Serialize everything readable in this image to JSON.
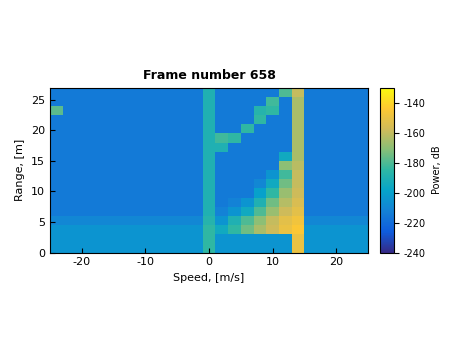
{
  "chart_data": {
    "type": "heatmap",
    "title": "Frame number 658",
    "x_label": "Speed, [m/s]",
    "y_label": "Range, [m]",
    "xlim": [
      -25,
      25
    ],
    "xticks": [
      -20,
      -10,
      0,
      10,
      20
    ],
    "ylim": [
      0,
      27
    ],
    "yticks": [
      0,
      5,
      10,
      15,
      20,
      25
    ],
    "x_edges": [
      -25,
      -23,
      -21,
      -19,
      -17,
      -15,
      -13,
      -11,
      -9,
      -7,
      -5,
      -3,
      -1,
      1,
      3,
      5,
      7,
      9,
      11,
      13,
      15,
      17,
      19,
      21,
      23,
      25
    ],
    "y_edges": [
      0,
      1.5,
      3,
      4.5,
      6,
      7.5,
      9,
      10.5,
      12,
      13.5,
      15,
      16.5,
      18,
      19.5,
      21,
      22.5,
      24,
      25.5,
      27
    ],
    "colorbar": {
      "label": "Power, dB",
      "lim": [
        -240,
        -130
      ],
      "ticks": [
        -240,
        -220,
        -200,
        -180,
        -160,
        -140
      ]
    },
    "cells": [
      [
        -205,
        -205,
        -205,
        -205,
        -205,
        -205,
        -205,
        -205,
        -205,
        -205,
        -205,
        -205,
        -185,
        -205,
        -205,
        -205,
        -205,
        -205,
        -205,
        -150,
        -205,
        -205,
        -205,
        -205,
        -205
      ],
      [
        -205,
        -205,
        -205,
        -205,
        -205,
        -205,
        -205,
        -205,
        -205,
        -205,
        -205,
        -205,
        -185,
        -205,
        -205,
        -205,
        -205,
        -205,
        -205,
        -150,
        -205,
        -205,
        -205,
        -205,
        -205
      ],
      [
        -205,
        -205,
        -205,
        -205,
        -205,
        -205,
        -205,
        -205,
        -205,
        -205,
        -205,
        -205,
        -185,
        -195,
        -185,
        -175,
        -165,
        -158,
        -150,
        -145,
        -205,
        -205,
        -205,
        -205,
        -205
      ],
      [
        -210,
        -210,
        -210,
        -210,
        -210,
        -210,
        -210,
        -210,
        -210,
        -210,
        -210,
        -210,
        -188,
        -205,
        -190,
        -180,
        -170,
        -160,
        -152,
        -148,
        -210,
        -210,
        -210,
        -210,
        -210
      ],
      [
        -215,
        -215,
        -215,
        -215,
        -215,
        -215,
        -215,
        -215,
        -215,
        -215,
        -215,
        -215,
        -190,
        -212,
        -205,
        -195,
        -180,
        -168,
        -158,
        -152,
        -215,
        -215,
        -215,
        -215,
        -215
      ],
      [
        -215,
        -215,
        -215,
        -215,
        -215,
        -215,
        -215,
        -215,
        -215,
        -215,
        -215,
        -215,
        -190,
        -215,
        -212,
        -205,
        -190,
        -175,
        -163,
        -155,
        -215,
        -215,
        -215,
        -215,
        -215
      ],
      [
        -215,
        -215,
        -215,
        -215,
        -215,
        -215,
        -215,
        -215,
        -215,
        -215,
        -215,
        -215,
        -190,
        -215,
        -215,
        -215,
        -200,
        -185,
        -168,
        -158,
        -215,
        -215,
        -215,
        -215,
        -215
      ],
      [
        -215,
        -215,
        -215,
        -215,
        -215,
        -215,
        -215,
        -215,
        -215,
        -215,
        -215,
        -215,
        -190,
        -215,
        -215,
        -215,
        -210,
        -195,
        -175,
        -160,
        -215,
        -215,
        -215,
        -215,
        -215
      ],
      [
        -215,
        -215,
        -215,
        -215,
        -215,
        -215,
        -215,
        -215,
        -215,
        -215,
        -215,
        -215,
        -190,
        -215,
        -215,
        -215,
        -215,
        -205,
        -182,
        -160,
        -215,
        -215,
        -215,
        -215,
        -215
      ],
      [
        -215,
        -215,
        -215,
        -215,
        -215,
        -215,
        -215,
        -215,
        -215,
        -215,
        -215,
        -215,
        -190,
        -215,
        -215,
        -215,
        -215,
        -215,
        -170,
        -162,
        -215,
        -215,
        -215,
        -215,
        -215
      ],
      [
        -215,
        -215,
        -215,
        -215,
        -215,
        -215,
        -215,
        -215,
        -215,
        -215,
        -215,
        -215,
        -190,
        -215,
        -215,
        -215,
        -215,
        -215,
        -195,
        -165,
        -215,
        -215,
        -215,
        -215,
        -215
      ],
      [
        -215,
        -215,
        -215,
        -215,
        -215,
        -215,
        -215,
        -215,
        -215,
        -215,
        -215,
        -215,
        -190,
        -190,
        -215,
        -215,
        -215,
        -215,
        -215,
        -165,
        -215,
        -215,
        -215,
        -215,
        -215
      ],
      [
        -215,
        -215,
        -215,
        -215,
        -215,
        -215,
        -215,
        -215,
        -215,
        -215,
        -215,
        -215,
        -190,
        -182,
        -185,
        -215,
        -215,
        -215,
        -215,
        -165,
        -215,
        -215,
        -215,
        -215,
        -215
      ],
      [
        -215,
        -215,
        -215,
        -215,
        -215,
        -215,
        -215,
        -215,
        -215,
        -215,
        -215,
        -215,
        -190,
        -215,
        -215,
        -185,
        -215,
        -215,
        -215,
        -165,
        -215,
        -215,
        -215,
        -215,
        -215
      ],
      [
        -215,
        -215,
        -215,
        -215,
        -215,
        -215,
        -215,
        -215,
        -215,
        -215,
        -215,
        -215,
        -190,
        -215,
        -215,
        -215,
        -185,
        -215,
        -215,
        -165,
        -215,
        -215,
        -215,
        -215,
        -215
      ],
      [
        -178,
        -215,
        -215,
        -215,
        -215,
        -215,
        -215,
        -215,
        -215,
        -215,
        -215,
        -215,
        -190,
        -215,
        -215,
        -215,
        -188,
        -185,
        -215,
        -165,
        -215,
        -215,
        -215,
        -215,
        -215
      ],
      [
        -215,
        -215,
        -215,
        -215,
        -215,
        -215,
        -215,
        -215,
        -215,
        -215,
        -215,
        -215,
        -190,
        -215,
        -215,
        -215,
        -215,
        -182,
        -215,
        -165,
        -215,
        -215,
        -215,
        -215,
        -215
      ],
      [
        -215,
        -215,
        -215,
        -215,
        -215,
        -215,
        -215,
        -215,
        -215,
        -215,
        -215,
        -215,
        -190,
        -215,
        -215,
        -215,
        -215,
        -215,
        -180,
        -160,
        -215,
        -215,
        -215,
        -215,
        -215
      ]
    ]
  }
}
